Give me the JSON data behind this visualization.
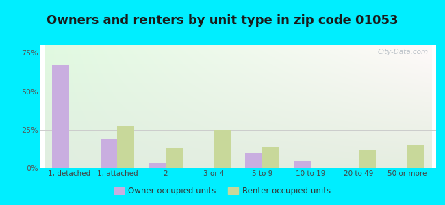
{
  "title": "Owners and renters by unit type in zip code 01053",
  "categories": [
    "1, detached",
    "1, attached",
    "2",
    "3 or 4",
    "5 to 9",
    "10 to 19",
    "20 to 49",
    "50 or more"
  ],
  "owner_values": [
    67,
    19,
    3,
    0,
    10,
    5,
    0,
    0
  ],
  "renter_values": [
    0,
    27,
    13,
    25,
    14,
    0,
    12,
    15
  ],
  "owner_color": "#c9aee0",
  "renter_color": "#c8d89a",
  "owner_label": "Owner occupied units",
  "renter_label": "Renter occupied units",
  "ylim": [
    0,
    80
  ],
  "yticks": [
    0,
    25,
    50,
    75
  ],
  "ytick_labels": [
    "0%",
    "25%",
    "50%",
    "75%"
  ],
  "bar_width": 0.35,
  "background_outer": "#00eeff",
  "title_fontsize": 13,
  "watermark": "City-Data.com"
}
